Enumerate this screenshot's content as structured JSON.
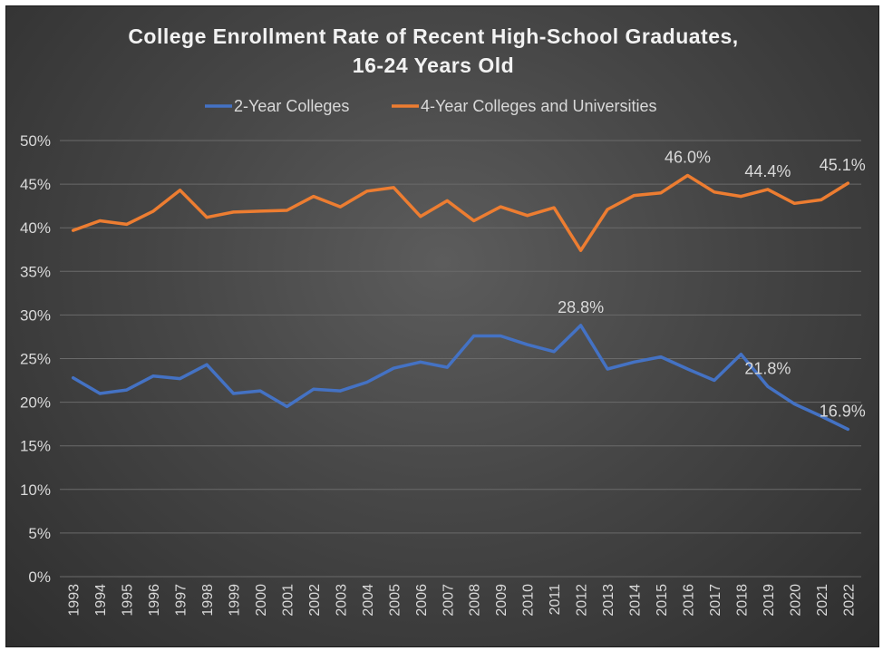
{
  "chart_data": {
    "type": "line",
    "title": [
      "College Enrollment Rate of Recent High-School Graduates,",
      "16-24 Years Old"
    ],
    "x": [
      "1993",
      "1994",
      "1995",
      "1996",
      "1997",
      "1998",
      "1999",
      "2000",
      "2001",
      "2002",
      "2003",
      "2004",
      "2005",
      "2006",
      "2007",
      "2008",
      "2009",
      "2010",
      "2011",
      "2012",
      "2013",
      "2014",
      "2015",
      "2016",
      "2017",
      "2018",
      "2019",
      "2020",
      "2021",
      "2022"
    ],
    "ylim": [
      0,
      50
    ],
    "yticks": [
      "0%",
      "5%",
      "10%",
      "15%",
      "20%",
      "25%",
      "30%",
      "35%",
      "40%",
      "45%",
      "50%"
    ],
    "ytick_values": [
      0,
      5,
      10,
      15,
      20,
      25,
      30,
      35,
      40,
      45,
      50
    ],
    "grid": true,
    "legend_position": "top",
    "series": [
      {
        "name": "2-Year Colleges",
        "color": "#4472c4",
        "values": [
          22.8,
          21.0,
          21.4,
          23.0,
          22.7,
          24.3,
          21.0,
          21.3,
          19.5,
          21.5,
          21.3,
          22.3,
          23.9,
          24.6,
          24.0,
          27.6,
          27.6,
          26.6,
          25.8,
          28.8,
          23.8,
          24.6,
          25.2,
          23.8,
          22.5,
          25.5,
          21.8,
          19.8,
          18.4,
          16.9
        ],
        "labels": [
          {
            "index": 19,
            "text": "28.8%"
          },
          {
            "index": 26,
            "text": "21.8%"
          },
          {
            "index": 29,
            "text": "16.9%"
          }
        ]
      },
      {
        "name": "4-Year Colleges and Universities",
        "color": "#ed7d31",
        "values": [
          39.7,
          40.8,
          40.4,
          41.9,
          44.3,
          41.2,
          41.8,
          41.9,
          42.0,
          43.6,
          42.4,
          44.2,
          44.6,
          41.3,
          43.1,
          40.8,
          42.4,
          41.4,
          42.3,
          37.4,
          42.1,
          43.7,
          44.0,
          46.0,
          44.1,
          43.6,
          44.4,
          42.8,
          43.2,
          45.1
        ],
        "labels": [
          {
            "index": 23,
            "text": "46.0%"
          },
          {
            "index": 26,
            "text": "44.4%"
          },
          {
            "index": 29,
            "text": "45.1%"
          }
        ]
      }
    ]
  }
}
